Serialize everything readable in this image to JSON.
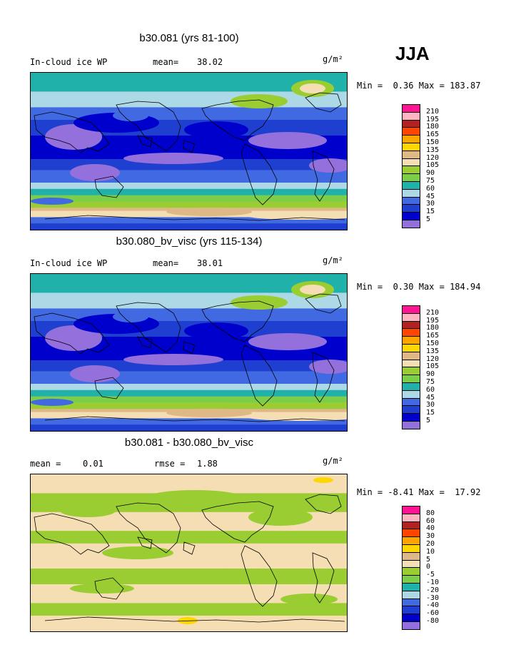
{
  "season": "JJA",
  "units": "g/m²",
  "panels": [
    {
      "title": "b30.081 (yrs 81-100)",
      "left_label": "In-cloud ice WP",
      "stat1_label": "mean=",
      "stat1_value": "38.02",
      "stat2_label": "",
      "stat2_value": "",
      "min_label": "Min =",
      "min_value": "0.36",
      "max_label": "Max =",
      "max_value": "183.87",
      "colormap": "abs",
      "legend_labels": [
        "210",
        "195",
        "180",
        "165",
        "150",
        "135",
        "120",
        "105",
        "90",
        "75",
        "60",
        "45",
        "30",
        "15",
        "5"
      ],
      "legend_colors": [
        "#ff1493",
        "#ffb6c1",
        "#b22222",
        "#ff4500",
        "#ffa500",
        "#ffd700",
        "#deb887",
        "#f5deb3",
        "#9acd32",
        "#7ccd4a",
        "#20b2aa",
        "#add8e6",
        "#4169e1",
        "#1e3fd0",
        "#0000cd",
        "#9370db"
      ]
    },
    {
      "title": "b30.080_bv_visc (yrs 115-134)",
      "left_label": "In-cloud ice WP",
      "stat1_label": "mean=",
      "stat1_value": "38.01",
      "stat2_label": "",
      "stat2_value": "",
      "min_label": "Min =",
      "min_value": "0.30",
      "max_label": "Max =",
      "max_value": "184.94",
      "colormap": "abs",
      "legend_labels": [
        "210",
        "195",
        "180",
        "165",
        "150",
        "135",
        "120",
        "105",
        "90",
        "75",
        "60",
        "45",
        "30",
        "15",
        "5"
      ],
      "legend_colors": [
        "#ff1493",
        "#ffb6c1",
        "#b22222",
        "#ff4500",
        "#ffa500",
        "#ffd700",
        "#deb887",
        "#f5deb3",
        "#9acd32",
        "#7ccd4a",
        "#20b2aa",
        "#add8e6",
        "#4169e1",
        "#1e3fd0",
        "#0000cd",
        "#9370db"
      ]
    },
    {
      "title": "b30.081 - b30.080_bv_visc",
      "left_label": "mean =",
      "stat1_label": "",
      "stat1_value": "0.01",
      "stat2_label": "rmse =",
      "stat2_value": "1.88",
      "min_label": "Min =",
      "min_value": "-8.41",
      "max_label": "Max =",
      "max_value": "17.92",
      "colormap": "diff",
      "legend_labels": [
        "80",
        "60",
        "40",
        "30",
        "20",
        "10",
        "5",
        "0",
        "-5",
        "-10",
        "-20",
        "-30",
        "-40",
        "-60",
        "-80"
      ],
      "legend_colors": [
        "#ff1493",
        "#ffb6c1",
        "#b22222",
        "#ff4500",
        "#ffa500",
        "#ffd700",
        "#deb887",
        "#f5deb3",
        "#9acd32",
        "#7ccd4a",
        "#20b2aa",
        "#add8e6",
        "#4169e1",
        "#1e3fd0",
        "#0000cd",
        "#9370db"
      ]
    }
  ]
}
